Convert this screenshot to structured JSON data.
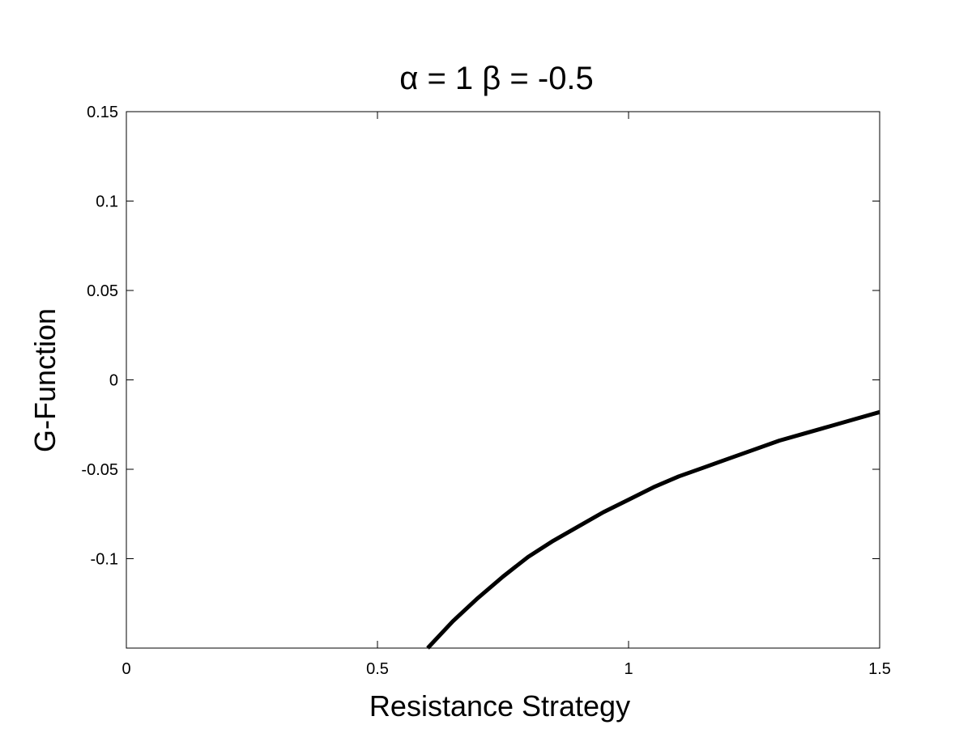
{
  "chart_data": {
    "type": "line",
    "title": "α = 1 β = -0.5",
    "xlabel": "Resistance Strategy",
    "ylabel": "G-Function",
    "xlim": [
      0,
      1.5
    ],
    "ylim": [
      -0.15,
      0.15
    ],
    "x_ticks": [
      0,
      0.5,
      1,
      1.5
    ],
    "x_tick_labels": [
      "0",
      "0.5",
      "1",
      "1.5"
    ],
    "y_ticks": [
      0.15,
      0.1,
      0.05,
      0,
      -0.05,
      -0.1
    ],
    "y_tick_labels": [
      "0.15",
      "0.1",
      "0.05",
      "0",
      "-0.05",
      "-0.1"
    ],
    "grid": false,
    "line_color": "#000000",
    "series": [
      {
        "x": [
          0.6,
          0.65,
          0.7,
          0.75,
          0.8,
          0.85,
          0.9,
          0.95,
          1.0,
          1.05,
          1.1,
          1.15,
          1.2,
          1.25,
          1.3,
          1.35,
          1.4,
          1.45,
          1.5
        ],
        "y": [
          -0.15,
          -0.135,
          -0.122,
          -0.11,
          -0.099,
          -0.09,
          -0.082,
          -0.074,
          -0.067,
          -0.06,
          -0.054,
          -0.049,
          -0.044,
          -0.039,
          -0.034,
          -0.03,
          -0.026,
          -0.022,
          -0.018
        ]
      }
    ]
  }
}
